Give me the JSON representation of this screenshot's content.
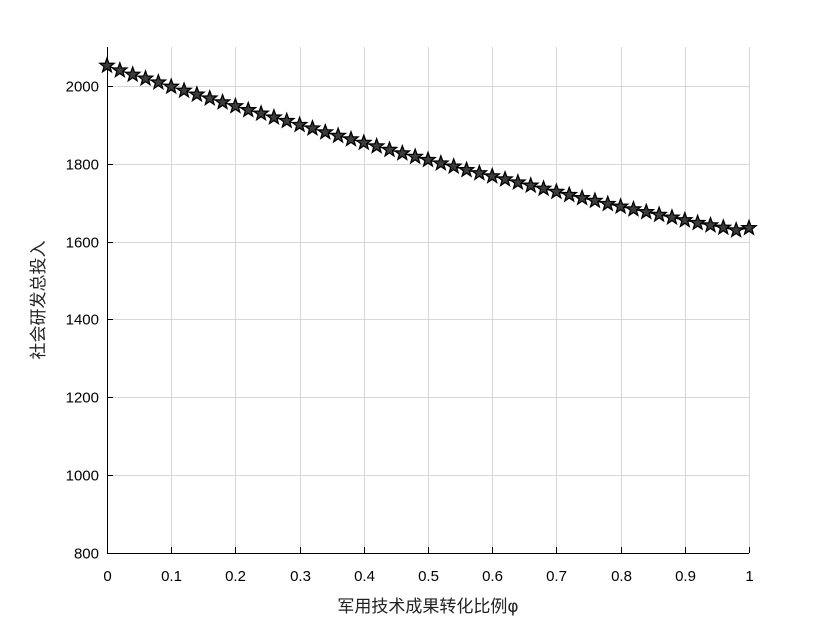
{
  "chart_data": {
    "type": "line",
    "title": "",
    "xlabel": "军用技术成果转化比例φ",
    "ylabel": "社会研发总投入",
    "xlim": [
      0,
      1
    ],
    "ylim": [
      800,
      2100
    ],
    "xticks": [
      "0",
      "0.1",
      "0.2",
      "0.3",
      "0.4",
      "0.5",
      "0.6",
      "0.7",
      "0.8",
      "0.9",
      "1"
    ],
    "yticks": [
      "800",
      "1000",
      "1200",
      "1400",
      "1600",
      "1800",
      "2000"
    ],
    "grid": true,
    "marker": "pentagram",
    "series": [
      {
        "x": [
          0,
          0.02,
          0.04,
          0.06,
          0.08,
          0.1,
          0.12,
          0.14,
          0.16,
          0.18,
          0.2,
          0.22,
          0.24,
          0.26,
          0.28,
          0.3,
          0.32,
          0.34,
          0.36,
          0.38,
          0.4,
          0.42,
          0.44,
          0.46,
          0.48,
          0.5,
          0.52,
          0.54,
          0.56,
          0.58,
          0.6,
          0.62,
          0.64,
          0.66,
          0.68,
          0.7,
          0.72,
          0.74,
          0.76,
          0.78,
          0.8,
          0.82,
          0.84,
          0.86,
          0.88,
          0.9,
          0.92,
          0.94,
          0.96,
          0.98,
          1
        ],
        "values": [
          2052,
          2040,
          2029,
          2019,
          2009,
          1998,
          1988,
          1978,
          1968,
          1958,
          1948,
          1938,
          1929,
          1919,
          1910,
          1900,
          1891,
          1881,
          1872,
          1863,
          1854,
          1845,
          1836,
          1827,
          1818,
          1810,
          1801,
          1793,
          1784,
          1776,
          1768,
          1760,
          1752,
          1744,
          1736,
          1728,
          1720,
          1712,
          1705,
          1697,
          1690,
          1683,
          1676,
          1669,
          1662,
          1655,
          1648,
          1642,
          1636,
          1629,
          1635
        ]
      }
    ]
  }
}
